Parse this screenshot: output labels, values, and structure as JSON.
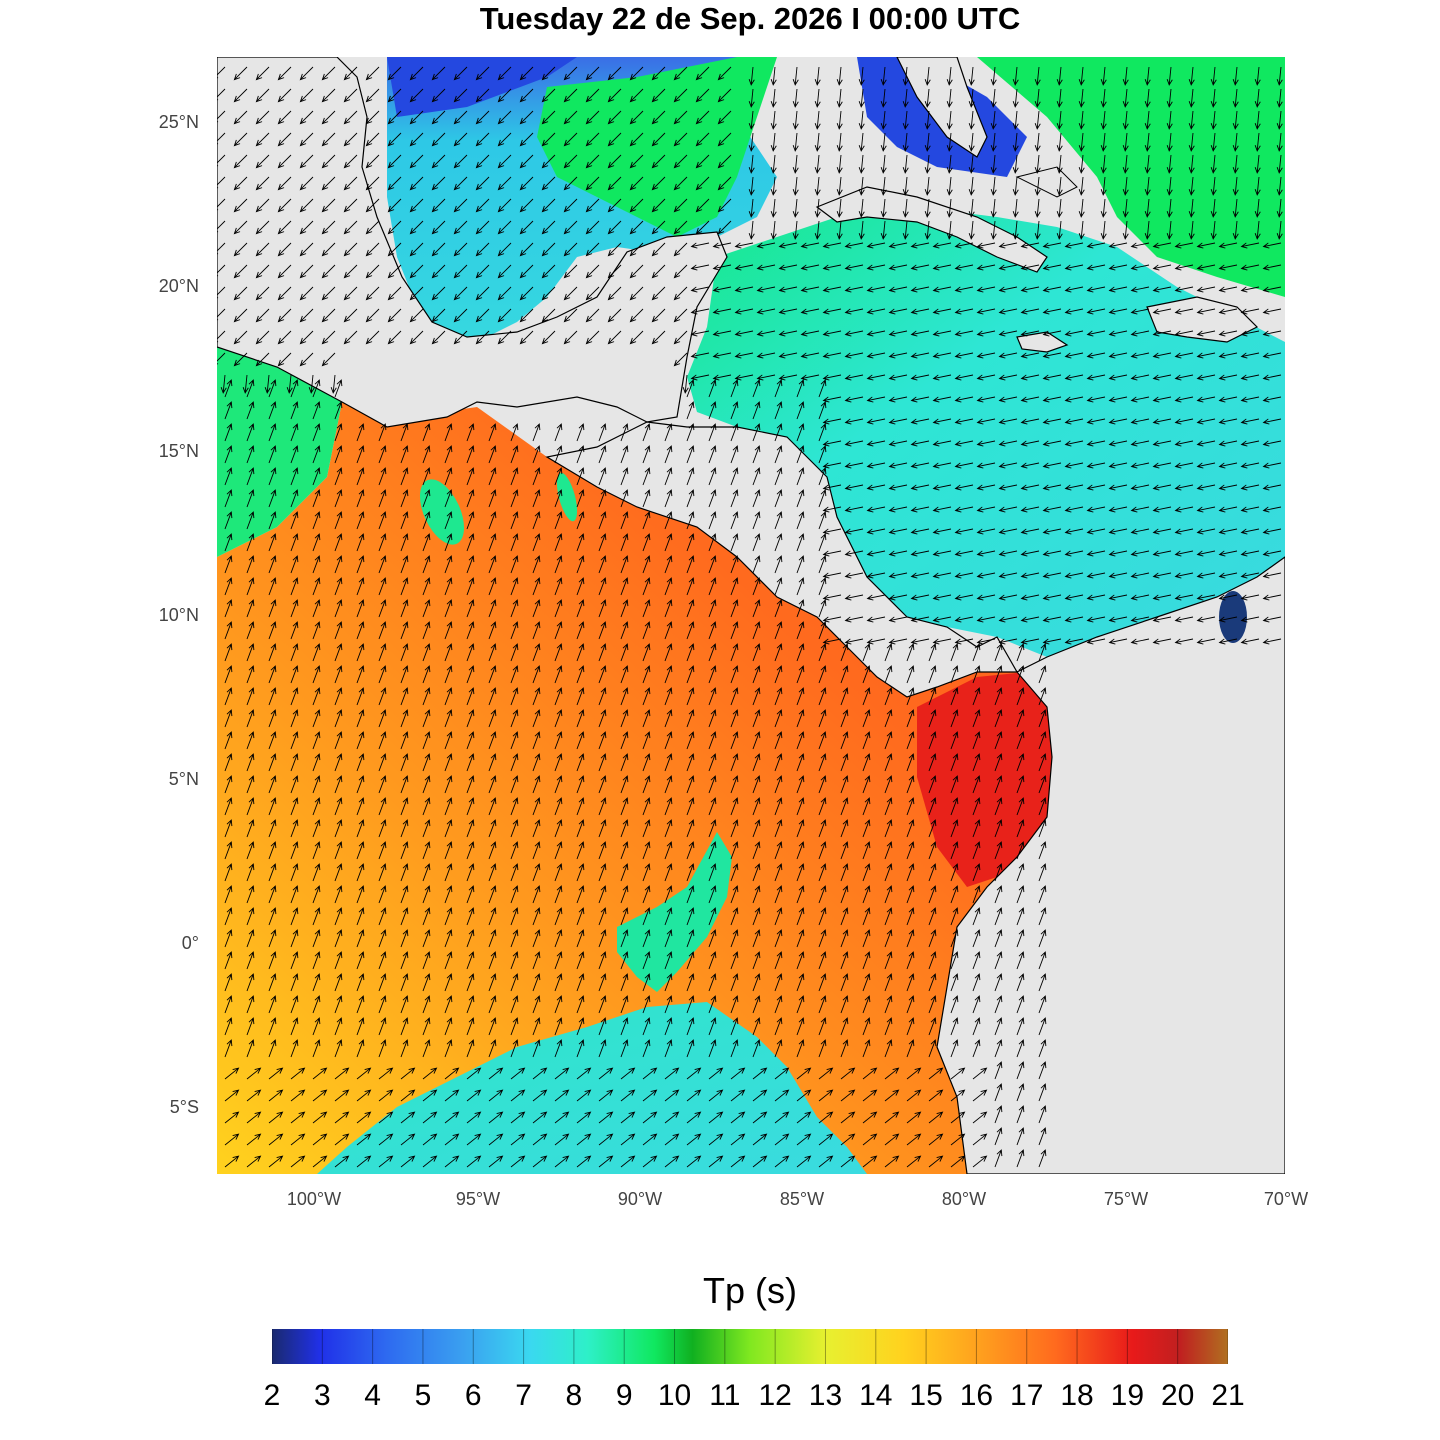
{
  "title": "Tuesday 22 de Sep. 2026  I  00:00 UTC",
  "legend": {
    "title": "Tp (s)",
    "ticks": [
      "2",
      "3",
      "4",
      "5",
      "6",
      "7",
      "8",
      "9",
      "10",
      "11",
      "12",
      "13",
      "14",
      "15",
      "16",
      "17",
      "18",
      "19",
      "20",
      "21"
    ]
  },
  "axes": {
    "lat_labels": [
      "25°N",
      "20°N",
      "15°N",
      "10°N",
      "5°N",
      "0°",
      "5°S"
    ],
    "lon_labels": [
      "100°W",
      "95°W",
      "90°W",
      "85°W",
      "80°W",
      "75°W",
      "70°W"
    ]
  },
  "colors": {
    "land": "#e6e6e6",
    "pacific_main": "#ff6a1e",
    "pacific_south": "#ffb61e",
    "pacific_deep_red": "#e8221a",
    "pacific_swell_patch": "#20e6a0",
    "caribbean": "#2ee6d4",
    "gulf_green": "#10e860",
    "gulf_blue": "#2050e6",
    "lake": "#1a3a7a"
  },
  "chart_data": {
    "type": "heatmap",
    "variable": "Tp (s)",
    "colorbar_range": [
      2,
      21
    ],
    "lat_range": [
      -7,
      27
    ],
    "lon_range": [
      -103,
      -70
    ]
  }
}
